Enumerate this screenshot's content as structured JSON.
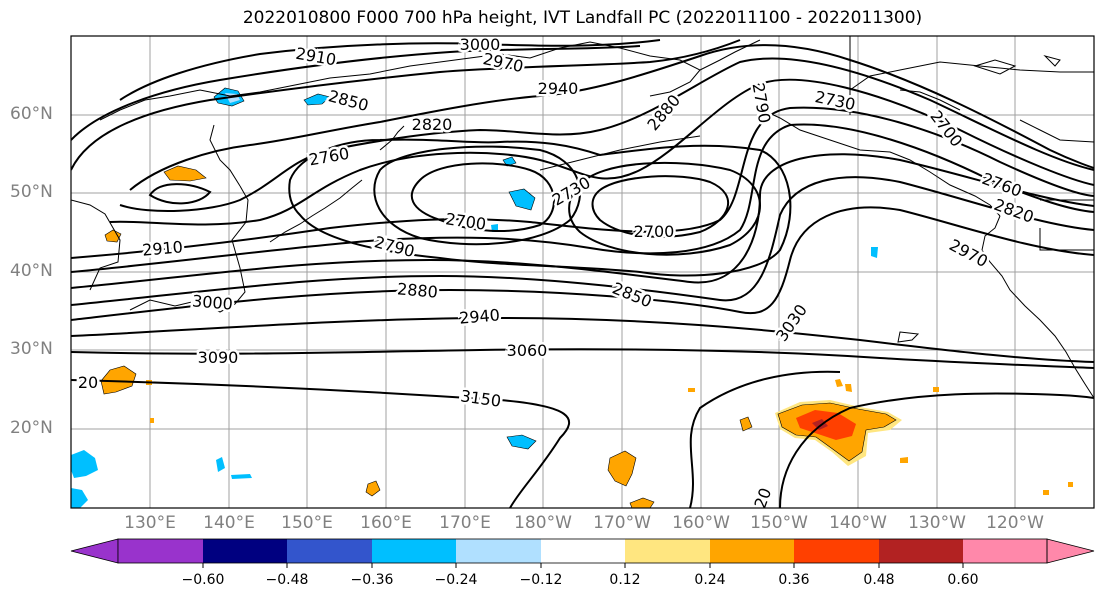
{
  "title": "2022010800 F000 700 hPa height, IVT Landfall PC (2022011100 - 2022011300)",
  "lat_labels": [
    "60°N",
    "50°N",
    "40°N",
    "30°N",
    "20°N"
  ],
  "lon_labels": [
    "130°E",
    "140°E",
    "150°E",
    "160°E",
    "170°E",
    "180°W",
    "170°W",
    "160°W",
    "150°W",
    "140°W",
    "130°W",
    "120°W"
  ],
  "contour_labels": [
    "3000",
    "2910",
    "2970",
    "2940",
    "2850",
    "2820",
    "2880",
    "2790",
    "2730",
    "2700",
    "2760",
    "2820",
    "2730",
    "2700",
    "2700",
    "2760",
    "2820",
    "2910",
    "2790",
    "2880",
    "2850",
    "2970",
    "3000",
    "2940",
    "3030",
    "3090",
    "3060",
    "20",
    "3150",
    "20"
  ],
  "colorbar": {
    "colors": [
      "#9933cc",
      "#000080",
      "#3355cc",
      "#00bfff",
      "#b0e0ff",
      "#ffffff",
      "#ffe680",
      "#ffa500",
      "#ff4000",
      "#b22222",
      "#ff88aa"
    ],
    "tick_labels": [
      "−0.60",
      "−0.48",
      "−0.36",
      "−0.24",
      "−0.12",
      "0.12",
      "0.24",
      "0.36",
      "0.48",
      "0.60"
    ]
  },
  "colors": {
    "contour": "#000000",
    "grid": "#a0a0a0",
    "coast": "#000000"
  }
}
